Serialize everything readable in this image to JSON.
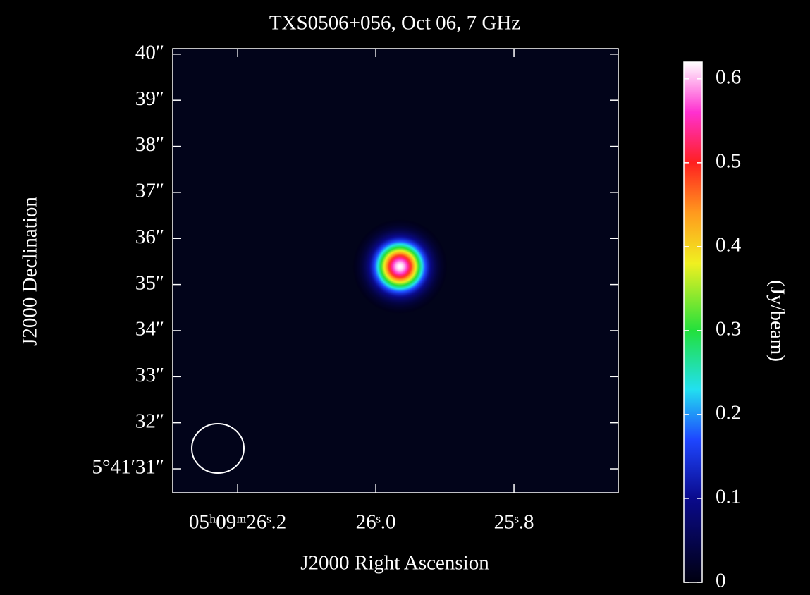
{
  "chart_data": {
    "type": "image",
    "title": "TXS0506+056, Oct 06, 7 GHz",
    "x_label": "J2000 Right Ascension",
    "y_label": "J2000 Declination",
    "colorbar_label": "(Jy/beam)",
    "xlim": [
      26.294,
      25.649
    ],
    "xticks": [
      {
        "value": 26.2,
        "label": "05ʰ09ᵐ26ˢ.2"
      },
      {
        "value": 26.0,
        "label": "26ˢ.0"
      },
      {
        "value": 25.8,
        "label": "25ˢ.8"
      }
    ],
    "ylim": [
      30.48,
      40.12
    ],
    "yticks": [
      {
        "value": 31,
        "label": "5°41′31″"
      },
      {
        "value": 32,
        "label": "32″"
      },
      {
        "value": 33,
        "label": "33″"
      },
      {
        "value": 34,
        "label": "34″"
      },
      {
        "value": 35,
        "label": "35″"
      },
      {
        "value": 36,
        "label": "36″"
      },
      {
        "value": 37,
        "label": "37″"
      },
      {
        "value": 38,
        "label": "38″"
      },
      {
        "value": 39,
        "label": "39″"
      },
      {
        "value": 40,
        "label": "40″"
      }
    ],
    "clim": [
      0,
      0.62
    ],
    "cticks": [
      0,
      0.1,
      0.2,
      0.3,
      0.4,
      0.5,
      0.6
    ],
    "colormap": [
      {
        "value": 0,
        "color": "#000010"
      },
      {
        "value": 0.1,
        "color": "#0a0a8c"
      },
      {
        "value": 0.17,
        "color": "#1e46ff"
      },
      {
        "value": 0.23,
        "color": "#22e0f0"
      },
      {
        "value": 0.3,
        "color": "#22e03c"
      },
      {
        "value": 0.38,
        "color": "#f0f020"
      },
      {
        "value": 0.44,
        "color": "#ff9a1e"
      },
      {
        "value": 0.5,
        "color": "#ff2020"
      },
      {
        "value": 0.56,
        "color": "#ff30d0"
      },
      {
        "value": 0.62,
        "color": "#ffffff"
      }
    ],
    "background": "#02041a",
    "source": {
      "x": 25.965,
      "y": 35.39,
      "peak": 0.62,
      "fwhm": 0.81
    }
  }
}
